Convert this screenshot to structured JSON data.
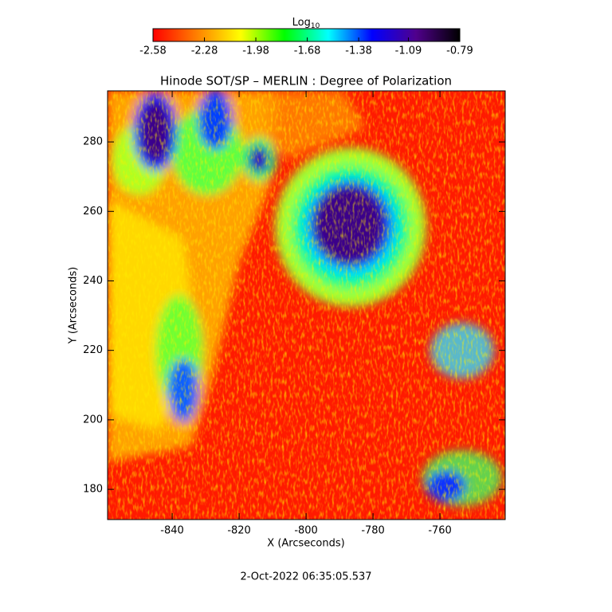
{
  "chart_data": {
    "type": "heatmap",
    "title": "Hinode SOT/SP – MERLIN : Degree of Polarization",
    "xlabel": "X (Arcseconds)",
    "ylabel": "Y (Arcseconds)",
    "footer": "2-Oct-2022 06:35:05.537",
    "xlim": [
      -859.3,
      -740.5
    ],
    "xticks": [
      -840,
      -820,
      -800,
      -780,
      -760
    ],
    "ylim": [
      171.3,
      294.7
    ],
    "yticks": [
      180,
      200,
      220,
      240,
      260,
      280
    ],
    "colorbar": {
      "label": "Log",
      "label_subscript": "10",
      "lim": [
        -2.58,
        -0.79
      ],
      "ticks": [
        -2.58,
        -2.28,
        -1.98,
        -1.68,
        -1.38,
        -1.09,
        -0.79
      ],
      "colors": [
        "#ff0000",
        "#ff8000",
        "#ffff00",
        "#00ff00",
        "#00ffff",
        "#0000ff",
        "#50008c",
        "#000000"
      ]
    }
  }
}
